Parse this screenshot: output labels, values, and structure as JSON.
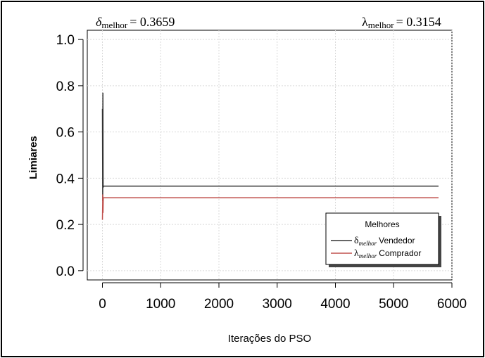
{
  "chart_data": {
    "type": "line",
    "annotations": {
      "delta_best_label": "δ",
      "delta_best_sub": "melhor",
      "delta_best_value": "= 0.3659",
      "lambda_best_label": "λ",
      "lambda_best_sub": "melhor",
      "lambda_best_value": "= 0.3154"
    },
    "xlabel": "Iterações do PSO",
    "ylabel": "Limiares",
    "xlim": [
      -260,
      6000
    ],
    "ylim": [
      -0.04,
      1.04
    ],
    "x_ticks": [
      0,
      1000,
      2000,
      3000,
      4000,
      5000,
      6000
    ],
    "x_tick_labels": [
      "0",
      "1000",
      "2000",
      "3000",
      "4000",
      "5000",
      "6000"
    ],
    "y_ticks": [
      0.0,
      0.2,
      0.4,
      0.6,
      0.8,
      1.0
    ],
    "y_tick_labels": [
      "0.0",
      "0.2",
      "0.4",
      "0.6",
      "0.8",
      "1.0"
    ],
    "grid": true,
    "legend": {
      "title": "Melhores",
      "placement": "bottom-right",
      "entries": [
        {
          "symbol": "δ",
          "sub": "melhor",
          "text": "Vendedor",
          "color": "#333333"
        },
        {
          "symbol": "λ",
          "sub": "melhor",
          "text": "Comprador",
          "color": "#c0504d"
        }
      ]
    },
    "series": [
      {
        "color": "#333333",
        "points": [
          [
            0,
            0.7
          ],
          [
            5,
            0.3
          ],
          [
            8,
            0.77
          ],
          [
            12,
            0.36
          ],
          [
            20,
            0.3659
          ],
          [
            5770,
            0.3659
          ]
        ]
      },
      {
        "color": "#c0504d",
        "points": [
          [
            0,
            0.22
          ],
          [
            6,
            0.33
          ],
          [
            10,
            0.25
          ],
          [
            15,
            0.3154
          ],
          [
            5770,
            0.3154
          ]
        ]
      }
    ]
  }
}
